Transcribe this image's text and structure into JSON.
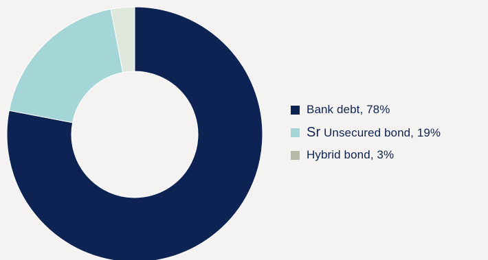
{
  "chart_data": {
    "type": "pie",
    "donut": true,
    "title": "",
    "legend_position": "right",
    "slices": [
      {
        "name": "Bank debt",
        "value": 78,
        "color": "#0c2353",
        "label": "Bank debt, 78%"
      },
      {
        "name": "Sr Unsecured bond",
        "value": 19,
        "color": "#a4d6d7",
        "label_prefix": "Sr",
        "label_rest": " Unsecured bond, 19%"
      },
      {
        "name": "Hybrid bond",
        "value": 3,
        "color": "#dfe7dc",
        "legend_color": "#b9b9a8",
        "label": "Hybrid bond, 3%"
      }
    ]
  }
}
